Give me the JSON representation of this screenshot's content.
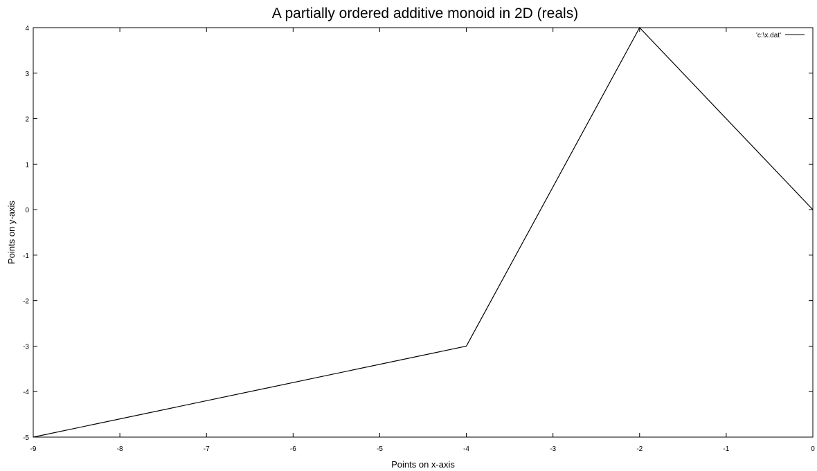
{
  "chart_data": {
    "type": "line",
    "title": "A partially ordered additive monoid in 2D (reals)",
    "xlabel": "Points on x-axis",
    "ylabel": "Points on y-axis",
    "xlim": [
      -9,
      0
    ],
    "ylim": [
      -5,
      4
    ],
    "xticks": [
      -9,
      -8,
      -7,
      -6,
      -5,
      -4,
      -3,
      -2,
      -1,
      0
    ],
    "yticks": [
      -5,
      -4,
      -3,
      -2,
      -1,
      0,
      1,
      2,
      3,
      4
    ],
    "grid": false,
    "legend_position": "top-right",
    "series": [
      {
        "name": "'c:\\x.dat'",
        "color": "#000000",
        "x": [
          -9,
          -4,
          -2,
          0
        ],
        "y": [
          -5,
          -3,
          4,
          0
        ]
      }
    ]
  }
}
